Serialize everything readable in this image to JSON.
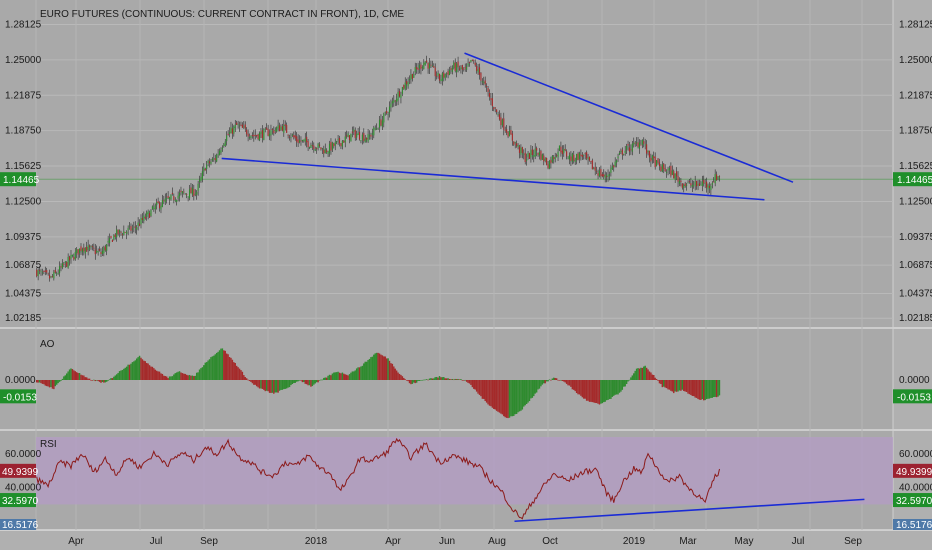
{
  "chart_data": [
    {
      "type": "candlestick",
      "title": "EURO FUTURES (CONTINUOUS: CURRENT CONTRACT IN FRONT), 1D, CME",
      "ylim": [
        1.015,
        1.287
      ],
      "y_ticks": [
        "1.28125",
        "1.25000",
        "1.21875",
        "1.18750",
        "1.15625",
        "1.12500",
        "1.09375",
        "1.06875",
        "1.04375",
        "1.02185"
      ],
      "last_value": "1.14465",
      "path": [
        [
          0,
          1.063
        ],
        [
          10,
          1.057
        ],
        [
          22,
          1.072
        ],
        [
          32,
          1.085
        ],
        [
          45,
          1.079
        ],
        [
          55,
          1.096
        ],
        [
          68,
          1.101
        ],
        [
          85,
          1.122
        ],
        [
          100,
          1.131
        ],
        [
          112,
          1.134
        ],
        [
          118,
          1.156
        ],
        [
          125,
          1.163
        ],
        [
          132,
          1.181
        ],
        [
          140,
          1.192
        ],
        [
          152,
          1.183
        ],
        [
          162,
          1.186
        ],
        [
          172,
          1.191
        ],
        [
          182,
          1.179
        ],
        [
          192,
          1.176
        ],
        [
          202,
          1.17
        ],
        [
          212,
          1.177
        ],
        [
          222,
          1.185
        ],
        [
          232,
          1.181
        ],
        [
          242,
          1.197
        ],
        [
          252,
          1.218
        ],
        [
          262,
          1.236
        ],
        [
          272,
          1.249
        ],
        [
          282,
          1.233
        ],
        [
          292,
          1.244
        ],
        [
          300,
          1.24
        ],
        [
          305,
          1.249
        ],
        [
          312,
          1.232
        ],
        [
          318,
          1.214
        ],
        [
          326,
          1.194
        ],
        [
          334,
          1.178
        ],
        [
          342,
          1.163
        ],
        [
          350,
          1.17
        ],
        [
          358,
          1.158
        ],
        [
          366,
          1.172
        ],
        [
          374,
          1.163
        ],
        [
          382,
          1.166
        ],
        [
          390,
          1.154
        ],
        [
          398,
          1.146
        ],
        [
          404,
          1.157
        ],
        [
          410,
          1.169
        ],
        [
          418,
          1.174
        ],
        [
          424,
          1.179
        ],
        [
          428,
          1.166
        ],
        [
          436,
          1.155
        ],
        [
          444,
          1.151
        ],
        [
          452,
          1.141
        ],
        [
          456,
          1.14
        ],
        [
          462,
          1.139
        ],
        [
          466,
          1.142
        ],
        [
          470,
          1.138
        ],
        [
          474,
          1.145
        ],
        [
          478,
          1.148
        ]
      ],
      "trendlines": [
        {
          "x1": 130,
          "y1": 1.163,
          "x2": 510,
          "y2": 1.1265
        },
        {
          "x1": 300,
          "y1": 1.256,
          "x2": 530,
          "y2": 1.142
        }
      ]
    },
    {
      "type": "histogram",
      "title": "AO",
      "zero_label": "0.0000",
      "last_value": "-0.0153",
      "ylim": [
        -0.045,
        0.045
      ],
      "path": [
        [
          0,
          -0.002
        ],
        [
          12,
          -0.008
        ],
        [
          24,
          0.011
        ],
        [
          36,
          0.001
        ],
        [
          48,
          -0.003
        ],
        [
          60,
          0.01
        ],
        [
          72,
          0.022
        ],
        [
          84,
          0.009
        ],
        [
          92,
          0.002
        ],
        [
          100,
          0.008
        ],
        [
          110,
          0.003
        ],
        [
          120,
          0.019
        ],
        [
          130,
          0.03
        ],
        [
          140,
          0.014
        ],
        [
          148,
          0.0
        ],
        [
          156,
          -0.008
        ],
        [
          166,
          -0.013
        ],
        [
          176,
          -0.007
        ],
        [
          184,
          0.0
        ],
        [
          192,
          -0.006
        ],
        [
          202,
          0.002
        ],
        [
          210,
          0.008
        ],
        [
          218,
          0.005
        ],
        [
          228,
          0.014
        ],
        [
          238,
          0.026
        ],
        [
          246,
          0.02
        ],
        [
          254,
          0.006
        ],
        [
          262,
          -0.004
        ],
        [
          270,
          0.0
        ],
        [
          282,
          0.003
        ],
        [
          292,
          0.001
        ],
        [
          300,
          0.0
        ],
        [
          306,
          -0.008
        ],
        [
          314,
          -0.02
        ],
        [
          322,
          -0.029
        ],
        [
          330,
          -0.036
        ],
        [
          338,
          -0.03
        ],
        [
          346,
          -0.018
        ],
        [
          354,
          -0.004
        ],
        [
          362,
          0.002
        ],
        [
          370,
          -0.002
        ],
        [
          378,
          -0.012
        ],
        [
          386,
          -0.02
        ],
        [
          394,
          -0.023
        ],
        [
          400,
          -0.019
        ],
        [
          408,
          -0.012
        ],
        [
          414,
          -0.002
        ],
        [
          420,
          0.01
        ],
        [
          426,
          0.013
        ],
        [
          432,
          0.004
        ],
        [
          438,
          -0.006
        ],
        [
          446,
          -0.012
        ],
        [
          452,
          -0.009
        ],
        [
          458,
          -0.014
        ],
        [
          464,
          -0.019
        ],
        [
          470,
          -0.018
        ],
        [
          478,
          -0.015
        ]
      ]
    },
    {
      "type": "line",
      "title": "RSI",
      "ylim": [
        16.0,
        73.0
      ],
      "y_ticks": [
        "60.0000",
        "40.0000"
      ],
      "last_value": "49.9399",
      "marker_value": "32.5970",
      "bottom_value": "16.5176",
      "band": [
        30,
        70
      ],
      "path": [
        [
          0,
          45
        ],
        [
          8,
          41
        ],
        [
          16,
          55
        ],
        [
          24,
          53
        ],
        [
          32,
          60
        ],
        [
          40,
          49
        ],
        [
          48,
          57
        ],
        [
          56,
          48
        ],
        [
          64,
          58
        ],
        [
          72,
          52
        ],
        [
          82,
          60
        ],
        [
          92,
          54
        ],
        [
          102,
          61
        ],
        [
          110,
          56
        ],
        [
          118,
          64
        ],
        [
          126,
          60
        ],
        [
          134,
          67
        ],
        [
          142,
          58
        ],
        [
          150,
          55
        ],
        [
          158,
          49
        ],
        [
          166,
          47
        ],
        [
          174,
          55
        ],
        [
          182,
          53
        ],
        [
          190,
          59
        ],
        [
          198,
          52
        ],
        [
          206,
          48
        ],
        [
          212,
          38
        ],
        [
          218,
          44
        ],
        [
          226,
          57
        ],
        [
          234,
          56
        ],
        [
          244,
          60
        ],
        [
          252,
          69
        ],
        [
          262,
          58
        ],
        [
          272,
          66
        ],
        [
          282,
          55
        ],
        [
          292,
          59
        ],
        [
          300,
          56
        ],
        [
          310,
          52
        ],
        [
          318,
          44
        ],
        [
          326,
          37
        ],
        [
          334,
          26
        ],
        [
          340,
          22
        ],
        [
          346,
          30
        ],
        [
          354,
          40
        ],
        [
          362,
          48
        ],
        [
          372,
          44
        ],
        [
          382,
          49
        ],
        [
          392,
          51
        ],
        [
          398,
          38
        ],
        [
          404,
          32
        ],
        [
          410,
          43
        ],
        [
          418,
          51
        ],
        [
          424,
          49
        ],
        [
          428,
          61
        ],
        [
          434,
          52
        ],
        [
          442,
          43
        ],
        [
          450,
          47
        ],
        [
          456,
          40
        ],
        [
          462,
          36
        ],
        [
          468,
          31
        ],
        [
          474,
          45
        ],
        [
          478,
          50
        ]
      ],
      "trendlines": [
        {
          "x1": 335,
          "y1": 20.0,
          "x2": 580,
          "y2": 33.0
        }
      ]
    }
  ],
  "x_axis": {
    "labels": [
      "Apr",
      "Jul",
      "Sep",
      "2018",
      "Apr",
      "Jun",
      "Aug",
      "Oct",
      "2019",
      "Mar",
      "May",
      "Jul",
      "Sep"
    ]
  },
  "colors": {
    "background": "#a9a9a9",
    "axis_bg": "#b2b2b2",
    "up": "#2e8b2e",
    "down": "#a52a2a",
    "trend": "#1a2bd6",
    "rsi_line": "#8b1a1a",
    "rsi_band": "#b49cc6",
    "value_tag": "#1f8f2a",
    "rsi_tag": "#9c2230",
    "bottom_tag": "#4f79a8"
  }
}
